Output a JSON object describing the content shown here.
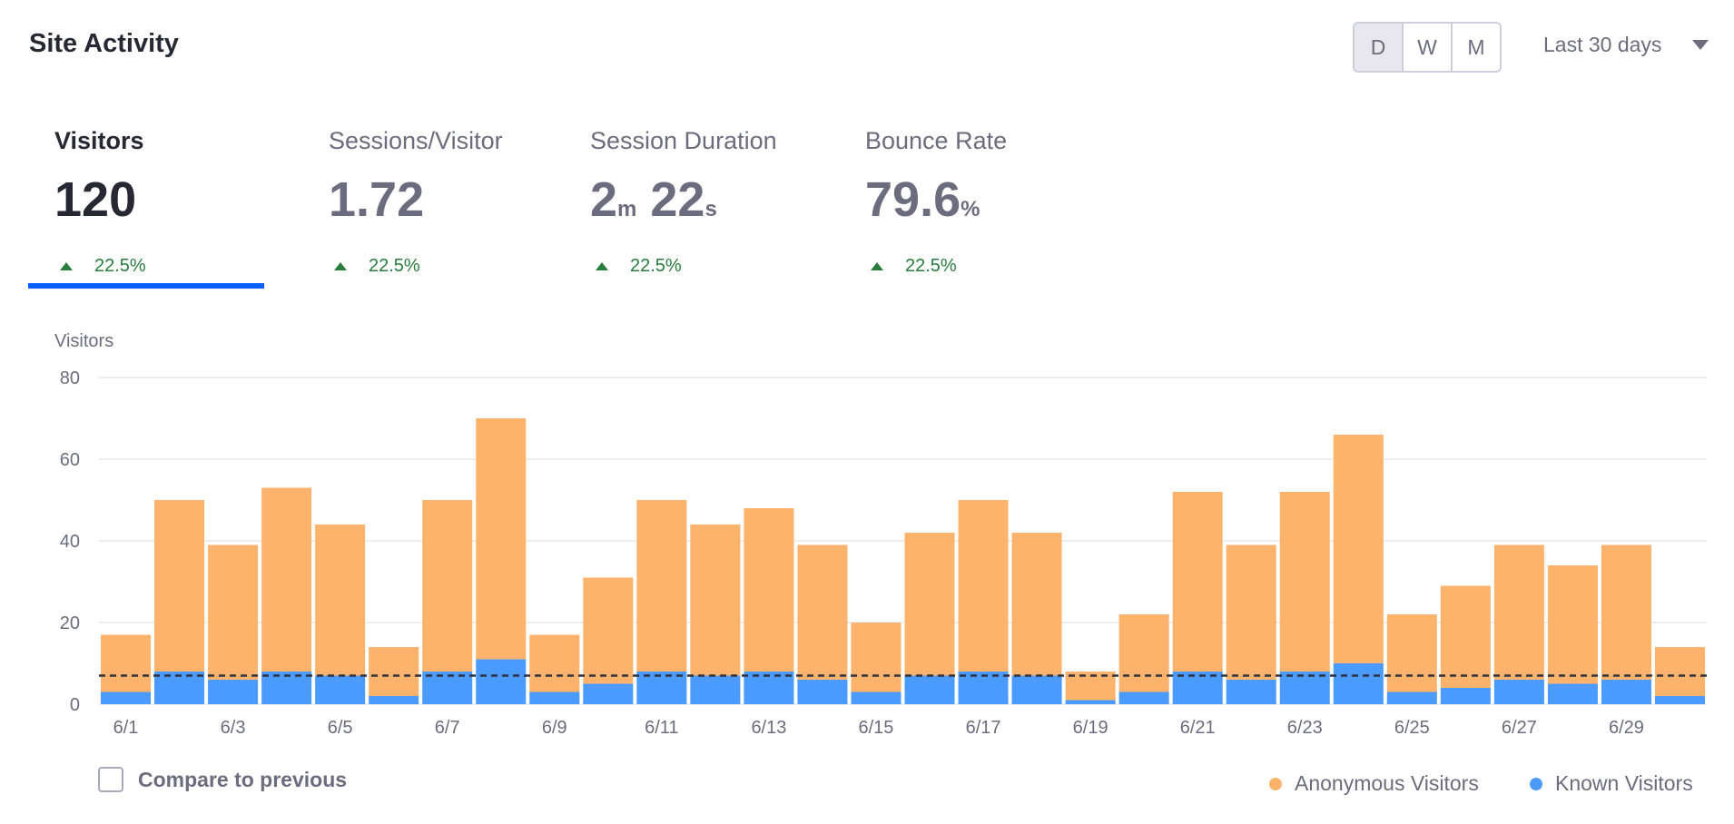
{
  "header": {
    "title": "Site Activity",
    "intervals": [
      "D",
      "W",
      "M"
    ],
    "active_interval": "D",
    "range_label": "Last 30 days"
  },
  "metrics": [
    {
      "label": "Visitors",
      "value": "120",
      "unit": "",
      "value2": "",
      "unit2": "",
      "trend": "22.5%"
    },
    {
      "label": "Sessions/Visitor",
      "value": "1.72",
      "unit": "",
      "value2": "",
      "unit2": "",
      "trend": "22.5%"
    },
    {
      "label": "Session Duration",
      "value": "2",
      "unit": "m",
      "value2": " 22",
      "unit2": "s",
      "trend": "22.5%"
    },
    {
      "label": "Bounce Rate",
      "value": "79.6",
      "unit": "%",
      "value2": "",
      "unit2": "",
      "trend": "22.5%"
    }
  ],
  "compare_label": "Compare to previous",
  "colors": {
    "anonymous": "#fdb36c",
    "known": "#4b9bff",
    "accent": "#0b5fff",
    "positive": "#287d3c"
  },
  "chart_data": {
    "type": "bar",
    "stacked": true,
    "ylabel": "Visitors",
    "ylim": [
      0,
      80
    ],
    "yticks": [
      0,
      20,
      40,
      60,
      80
    ],
    "categories": [
      "6/1",
      "6/2",
      "6/3",
      "6/4",
      "6/5",
      "6/6",
      "6/7",
      "6/8",
      "6/9",
      "6/10",
      "6/11",
      "6/12",
      "6/13",
      "6/14",
      "6/15",
      "6/16",
      "6/17",
      "6/18",
      "6/19",
      "6/20",
      "6/21",
      "6/22",
      "6/23",
      "6/24",
      "6/25",
      "6/26",
      "6/27",
      "6/28",
      "6/29",
      "6/30"
    ],
    "tick_labels": [
      "6/1",
      "6/3",
      "6/5",
      "6/7",
      "6/9",
      "6/11",
      "6/13",
      "6/15",
      "6/17",
      "6/19",
      "6/21",
      "6/23",
      "6/25",
      "6/27",
      "6/29"
    ],
    "series": [
      {
        "name": "Known Visitors",
        "color": "#4b9bff",
        "values": [
          3,
          8,
          6,
          8,
          7,
          2,
          8,
          11,
          3,
          5,
          8,
          7,
          8,
          6,
          3,
          7,
          8,
          7,
          1,
          3,
          8,
          6,
          8,
          10,
          3,
          4,
          6,
          5,
          6,
          2
        ]
      },
      {
        "name": "Anonymous Visitors",
        "color": "#fdb36c",
        "values": [
          14,
          42,
          33,
          45,
          37,
          12,
          42,
          59,
          14,
          26,
          42,
          37,
          40,
          33,
          17,
          35,
          42,
          35,
          7,
          19,
          44,
          33,
          44,
          56,
          19,
          25,
          33,
          29,
          33,
          12
        ]
      }
    ],
    "average": 7,
    "legend": [
      "Anonymous Visitors",
      "Known Visitors"
    ],
    "legend_position": "bottom-right",
    "grid": true
  }
}
